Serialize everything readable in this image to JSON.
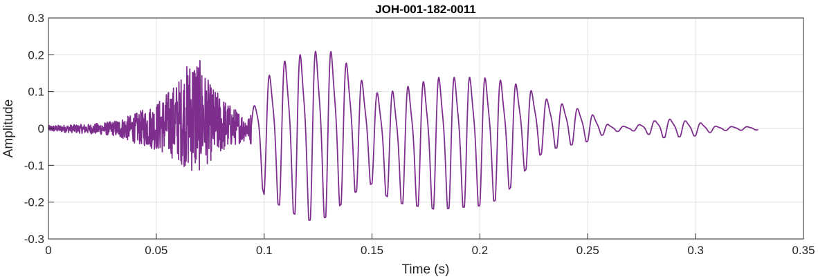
{
  "chart_data": {
    "type": "line",
    "title": "JOH-001-182-0011",
    "xlabel": "Time (s)",
    "ylabel": "Amplitude",
    "xlim": [
      0,
      0.35
    ],
    "ylim": [
      -0.3,
      0.3
    ],
    "xticks": [
      0,
      0.05,
      0.1,
      0.15,
      0.2,
      0.25,
      0.3,
      0.35
    ],
    "xtick_labels": [
      "0",
      "0.05",
      "0.1",
      "0.15",
      "0.2",
      "0.25",
      "0.3",
      "0.35"
    ],
    "yticks": [
      -0.3,
      -0.2,
      -0.1,
      0,
      0.1,
      0.2,
      0.3
    ],
    "ytick_labels": [
      "-0.3",
      "-0.2",
      "-0.1",
      "0",
      "0.1",
      "0.2",
      "0.3"
    ],
    "grid": true,
    "line_color": "#7e2f8e",
    "series": [
      {
        "x_start": 0,
        "x_end": 0.329,
        "envelope": [
          {
            "t": 0.0,
            "max": 0.008,
            "min": -0.008
          },
          {
            "t": 0.02,
            "max": 0.012,
            "min": -0.015
          },
          {
            "t": 0.03,
            "max": 0.02,
            "min": -0.02
          },
          {
            "t": 0.04,
            "max": 0.04,
            "min": -0.04
          },
          {
            "t": 0.05,
            "max": 0.07,
            "min": -0.06
          },
          {
            "t": 0.06,
            "max": 0.13,
            "min": -0.09
          },
          {
            "t": 0.068,
            "max": 0.215,
            "min": -0.13
          },
          {
            "t": 0.075,
            "max": 0.12,
            "min": -0.09
          },
          {
            "t": 0.085,
            "max": 0.06,
            "min": -0.05
          },
          {
            "t": 0.093,
            "max": 0.03,
            "min": -0.03
          },
          {
            "t": 0.1,
            "max": 0.15,
            "min": -0.18
          },
          {
            "t": 0.11,
            "max": 0.21,
            "min": -0.22
          },
          {
            "t": 0.12,
            "max": 0.235,
            "min": -0.25
          },
          {
            "t": 0.13,
            "max": 0.24,
            "min": -0.24
          },
          {
            "t": 0.14,
            "max": 0.19,
            "min": -0.18
          },
          {
            "t": 0.15,
            "max": 0.11,
            "min": -0.15
          },
          {
            "t": 0.16,
            "max": 0.12,
            "min": -0.2
          },
          {
            "t": 0.18,
            "max": 0.16,
            "min": -0.22
          },
          {
            "t": 0.2,
            "max": 0.16,
            "min": -0.21
          },
          {
            "t": 0.21,
            "max": 0.15,
            "min": -0.19
          },
          {
            "t": 0.22,
            "max": 0.13,
            "min": -0.12
          },
          {
            "t": 0.23,
            "max": 0.09,
            "min": -0.06
          },
          {
            "t": 0.25,
            "max": 0.05,
            "min": -0.035
          },
          {
            "t": 0.26,
            "max": 0.01,
            "min": -0.01
          },
          {
            "t": 0.27,
            "max": 0.005,
            "min": -0.005
          },
          {
            "t": 0.285,
            "max": 0.03,
            "min": -0.025
          },
          {
            "t": 0.3,
            "max": 0.02,
            "min": -0.02
          },
          {
            "t": 0.31,
            "max": 0.006,
            "min": -0.006
          },
          {
            "t": 0.329,
            "max": 0.005,
            "min": -0.004
          }
        ]
      }
    ]
  }
}
